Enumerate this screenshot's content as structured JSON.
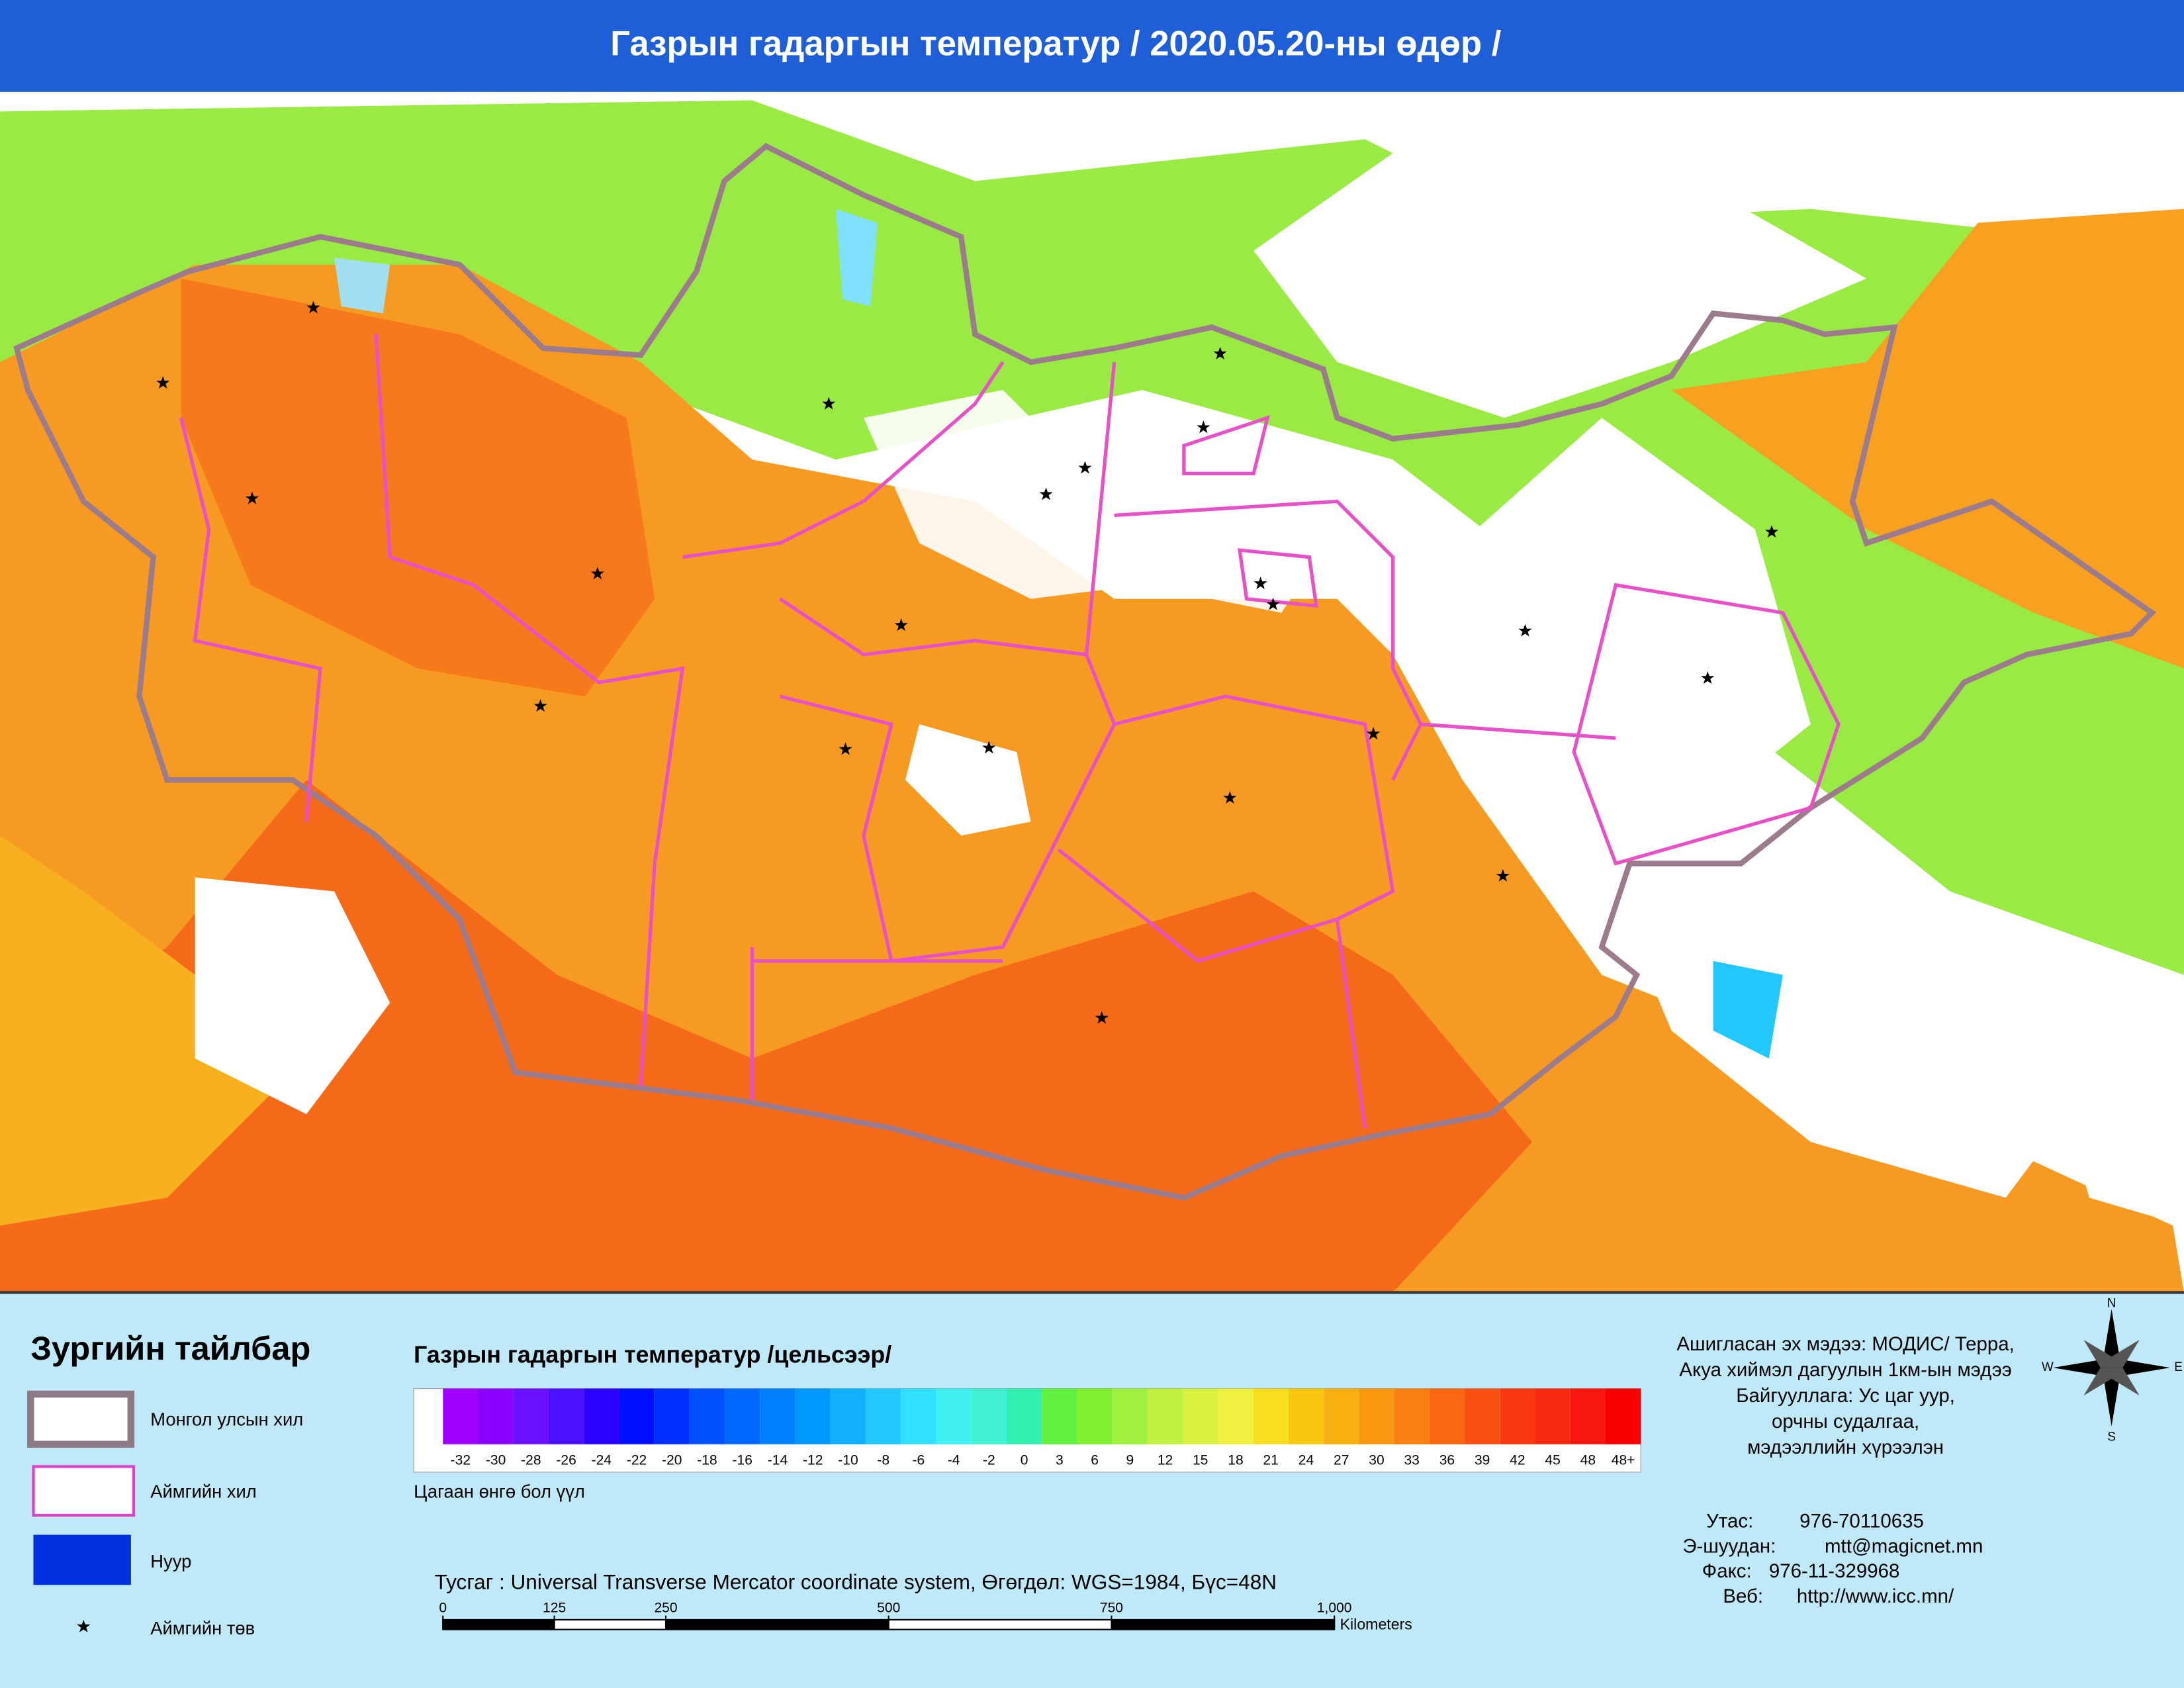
{
  "header": {
    "title": "Газрын гадаргын температур / 2020.05.20-ны өдөр /"
  },
  "legend": {
    "title": "Зургийн тайлбар",
    "items": [
      "Монгол улсын хил",
      "Аймгийн хил",
      "Нуур",
      "Аймгийн төв"
    ]
  },
  "colorbar": {
    "title": "Газрын гадаргын температур /цельсээр/",
    "labels": [
      "-32",
      "-30",
      "-28",
      "-26",
      "-24",
      "-22",
      "-20",
      "-18",
      "-16",
      "-14",
      "-12",
      "-10",
      "-8",
      "-6",
      "-4",
      "-2",
      "0",
      "3",
      "6",
      "9",
      "12",
      "15",
      "18",
      "21",
      "24",
      "27",
      "30",
      "33",
      "36",
      "39",
      "42",
      "45",
      "48",
      "48+"
    ],
    "colors": [
      "#a000ff",
      "#8a00ff",
      "#6a10ff",
      "#4a10ff",
      "#2a00ff",
      "#0010ff",
      "#0030ff",
      "#0050ff",
      "#0068ff",
      "#0080ff",
      "#0098ff",
      "#10b0ff",
      "#20c8ff",
      "#30e0ff",
      "#40f0f0",
      "#40f0d0",
      "#30f0b0",
      "#60f040",
      "#80f030",
      "#a0f040",
      "#c0f040",
      "#d8f040",
      "#f0f040",
      "#f8e020",
      "#f8c810",
      "#f8b010",
      "#f89810",
      "#f88010",
      "#f86810",
      "#f85010",
      "#f83810",
      "#f82810",
      "#f81810",
      "#f80000"
    ],
    "cloud_note": "Цагаан өнгө бол үүл"
  },
  "projection": "Тусгаг : Universal Transverse Mercator coordinate system, Өгөгдөл: WGS=1984, Бүс=48N",
  "scale_bar": {
    "ticks": [
      0,
      125,
      250,
      500,
      750,
      {
        "value": 1000,
        "label": "1,000"
      }
    ],
    "unit": "Kilometers"
  },
  "source": [
    "Ашигласан эх мэдээ: МОДИС/ Терра,",
    "Акуа хиймэл дагуулын 1км-ын мэдээ",
    "Байгууллага: Ус цаг уур,",
    "орчны судалгаа,",
    "мэдээллийн хүрээлэн"
  ],
  "contacts": [
    {
      "label": "Утас:",
      "value": "976-70110635"
    },
    {
      "label": "Э-шуудан:",
      "value": "mtt@magicnet.mn"
    },
    {
      "label": "Факс:",
      "value": "976-11-329968"
    },
    {
      "label": "Веб:",
      "value": "http://www.icc.mn/"
    }
  ],
  "compass": {
    "n": "N",
    "s": "S",
    "e": "E",
    "w": "W"
  }
}
